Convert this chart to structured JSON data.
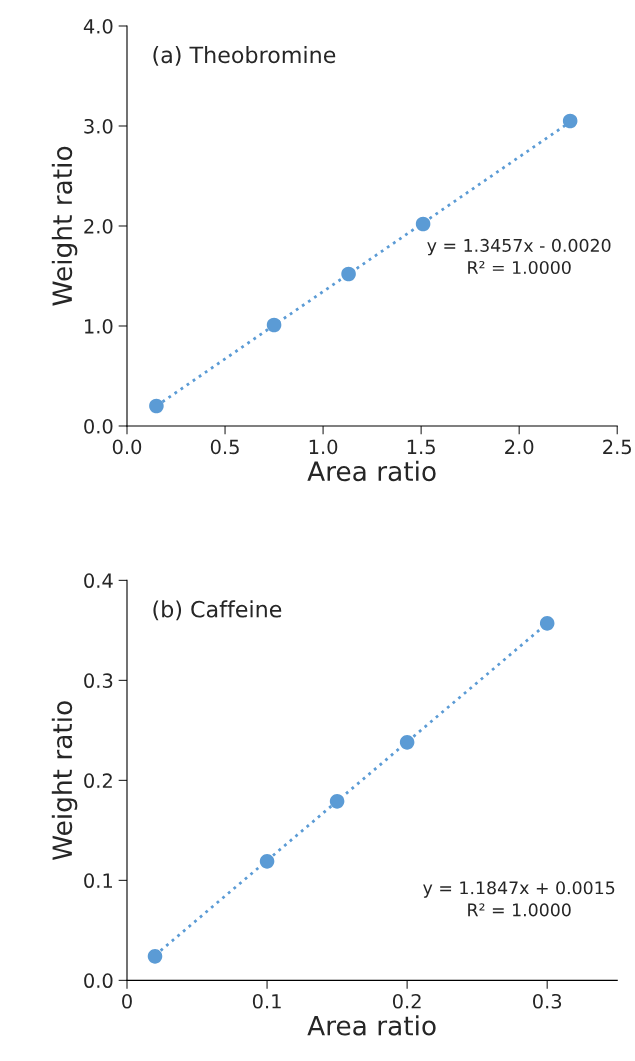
{
  "chart_data": [
    {
      "type": "scatter",
      "title": "(a) Theobromine",
      "xlabel": "Area ratio",
      "ylabel": "Weight ratio",
      "xlim": [
        0,
        2.5
      ],
      "xticks": [
        {
          "value": 0,
          "label": "0.0"
        },
        0.5,
        {
          "value": 1,
          "label": "1.0"
        },
        1.5,
        {
          "value": 2,
          "label": "2.0"
        },
        2.5
      ],
      "ylim": [
        0,
        4
      ],
      "yticks": [
        {
          "value": 0,
          "label": "0.0"
        },
        {
          "value": 1,
          "label": "1.0"
        },
        {
          "value": 2,
          "label": "2.0"
        },
        {
          "value": 3,
          "label": "3.0"
        },
        {
          "value": 4,
          "label": "4.0"
        }
      ],
      "grid": false,
      "series": [
        {
          "type": "scatter",
          "marker": "circle",
          "color": "#5b9bd5",
          "x": [
            0.15,
            0.75,
            1.13,
            1.51,
            2.26
          ],
          "values": [
            0.2,
            1.01,
            1.52,
            2.02,
            3.05
          ]
        },
        {
          "type": "line",
          "marker": "none",
          "color": "#5b9bd5",
          "line_style": "dotted",
          "x": [
            0.15,
            2.26
          ],
          "values": [
            0.2,
            3.04
          ]
        }
      ],
      "annotations": [
        "y = 1.3457x - 0.0020\nR² = 1.0000"
      ]
    },
    {
      "type": "scatter",
      "title": "(b) Caffeine",
      "xlabel": "Area ratio",
      "ylabel": "Weight ratio",
      "xlim": [
        0,
        0.35
      ],
      "xticks": [
        0,
        0.1,
        0.2,
        0.3
      ],
      "ylim": [
        0,
        0.4
      ],
      "yticks": [
        {
          "value": 0,
          "label": "0.0"
        },
        0.1,
        0.2,
        0.3,
        0.4
      ],
      "grid": false,
      "series": [
        {
          "type": "scatter",
          "marker": "circle",
          "color": "#5b9bd5",
          "x": [
            0.02,
            0.1,
            0.15,
            0.2,
            0.3
          ],
          "values": [
            0.024,
            0.119,
            0.179,
            0.238,
            0.357
          ]
        },
        {
          "type": "line",
          "marker": "none",
          "color": "#5b9bd5",
          "line_style": "dotted",
          "x": [
            0.02,
            0.3
          ],
          "values": [
            0.025,
            0.357
          ]
        }
      ],
      "annotations": [
        "y = 1.1847x + 0.0015\nR² = 1.0000"
      ]
    }
  ]
}
